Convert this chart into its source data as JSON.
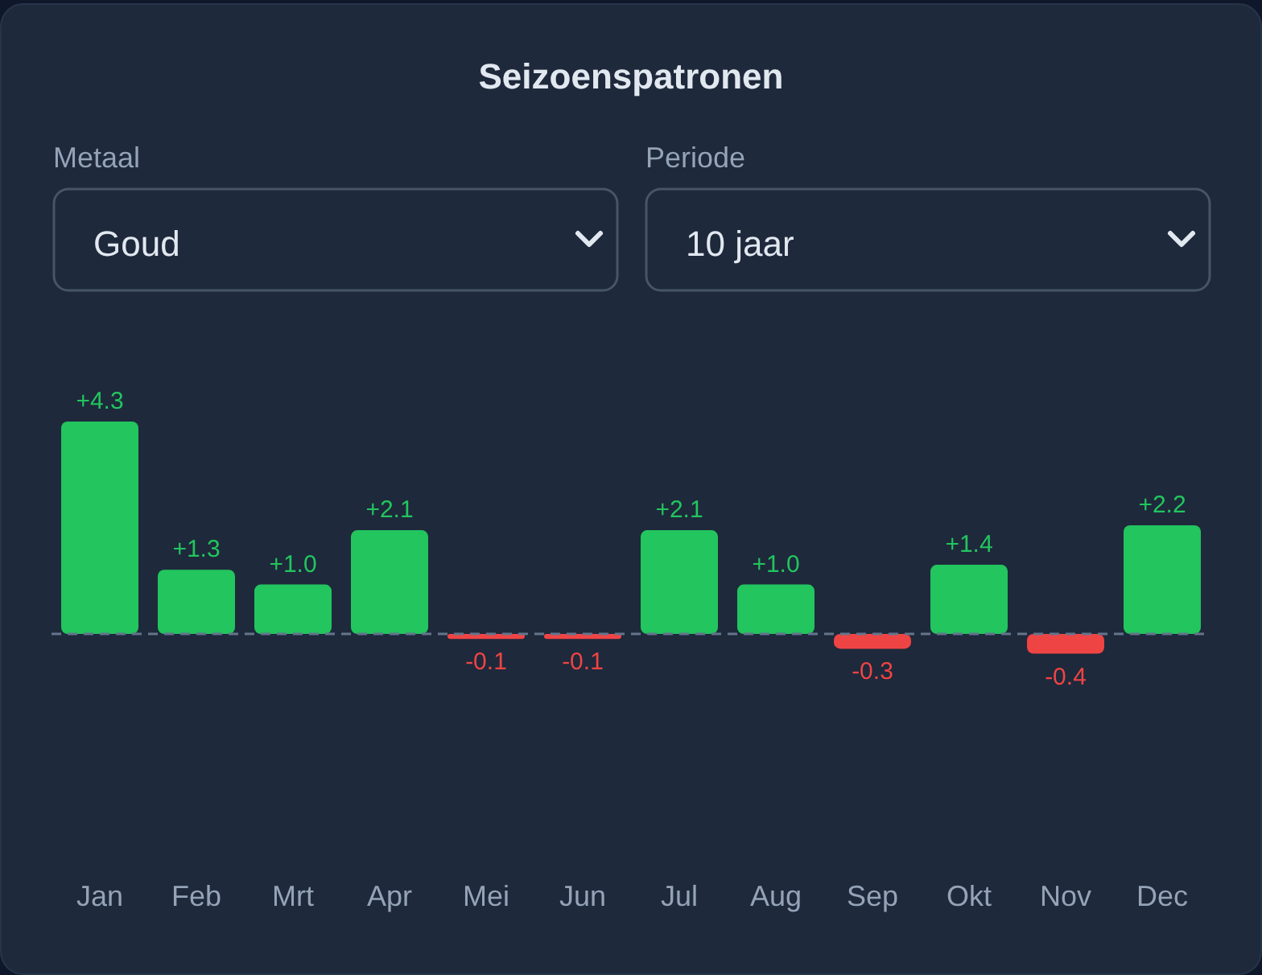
{
  "chart_data": {
    "type": "bar",
    "title": "Seizoenspatronen",
    "annotations": [
      "Metaal",
      "Goud",
      "Periode",
      "10 jaar"
    ],
    "categories": [
      "Jan",
      "Feb",
      "Mrt",
      "Apr",
      "Mei",
      "Jun",
      "Jul",
      "Aug",
      "Sep",
      "Okt",
      "Nov",
      "Dec"
    ],
    "values": [
      4.3,
      1.3,
      1.0,
      2.1,
      -0.1,
      -0.1,
      2.1,
      1.0,
      -0.3,
      1.4,
      -0.4,
      2.2
    ],
    "colors": [
      "#22c55e",
      "#22c55e",
      "#22c55e",
      "#22c55e",
      "#ef4444",
      "#ef4444",
      "#22c55e",
      "#22c55e",
      "#ef4444",
      "#22c55e",
      "#ef4444",
      "#22c55e"
    ],
    "value_labels": [
      "+4.3",
      "+1.3",
      "+1.0",
      "+2.1",
      "-0.1",
      "-0.1",
      "+2.1",
      "+1.0",
      "-0.3",
      "+1.4",
      "-0.4",
      "+2.2"
    ],
    "tick_labels": "x",
    "ref_lines": [
      {
        "axis": "y",
        "value": 0,
        "color": "#64748b",
        "line_style": "dashed"
      }
    ]
  }
}
